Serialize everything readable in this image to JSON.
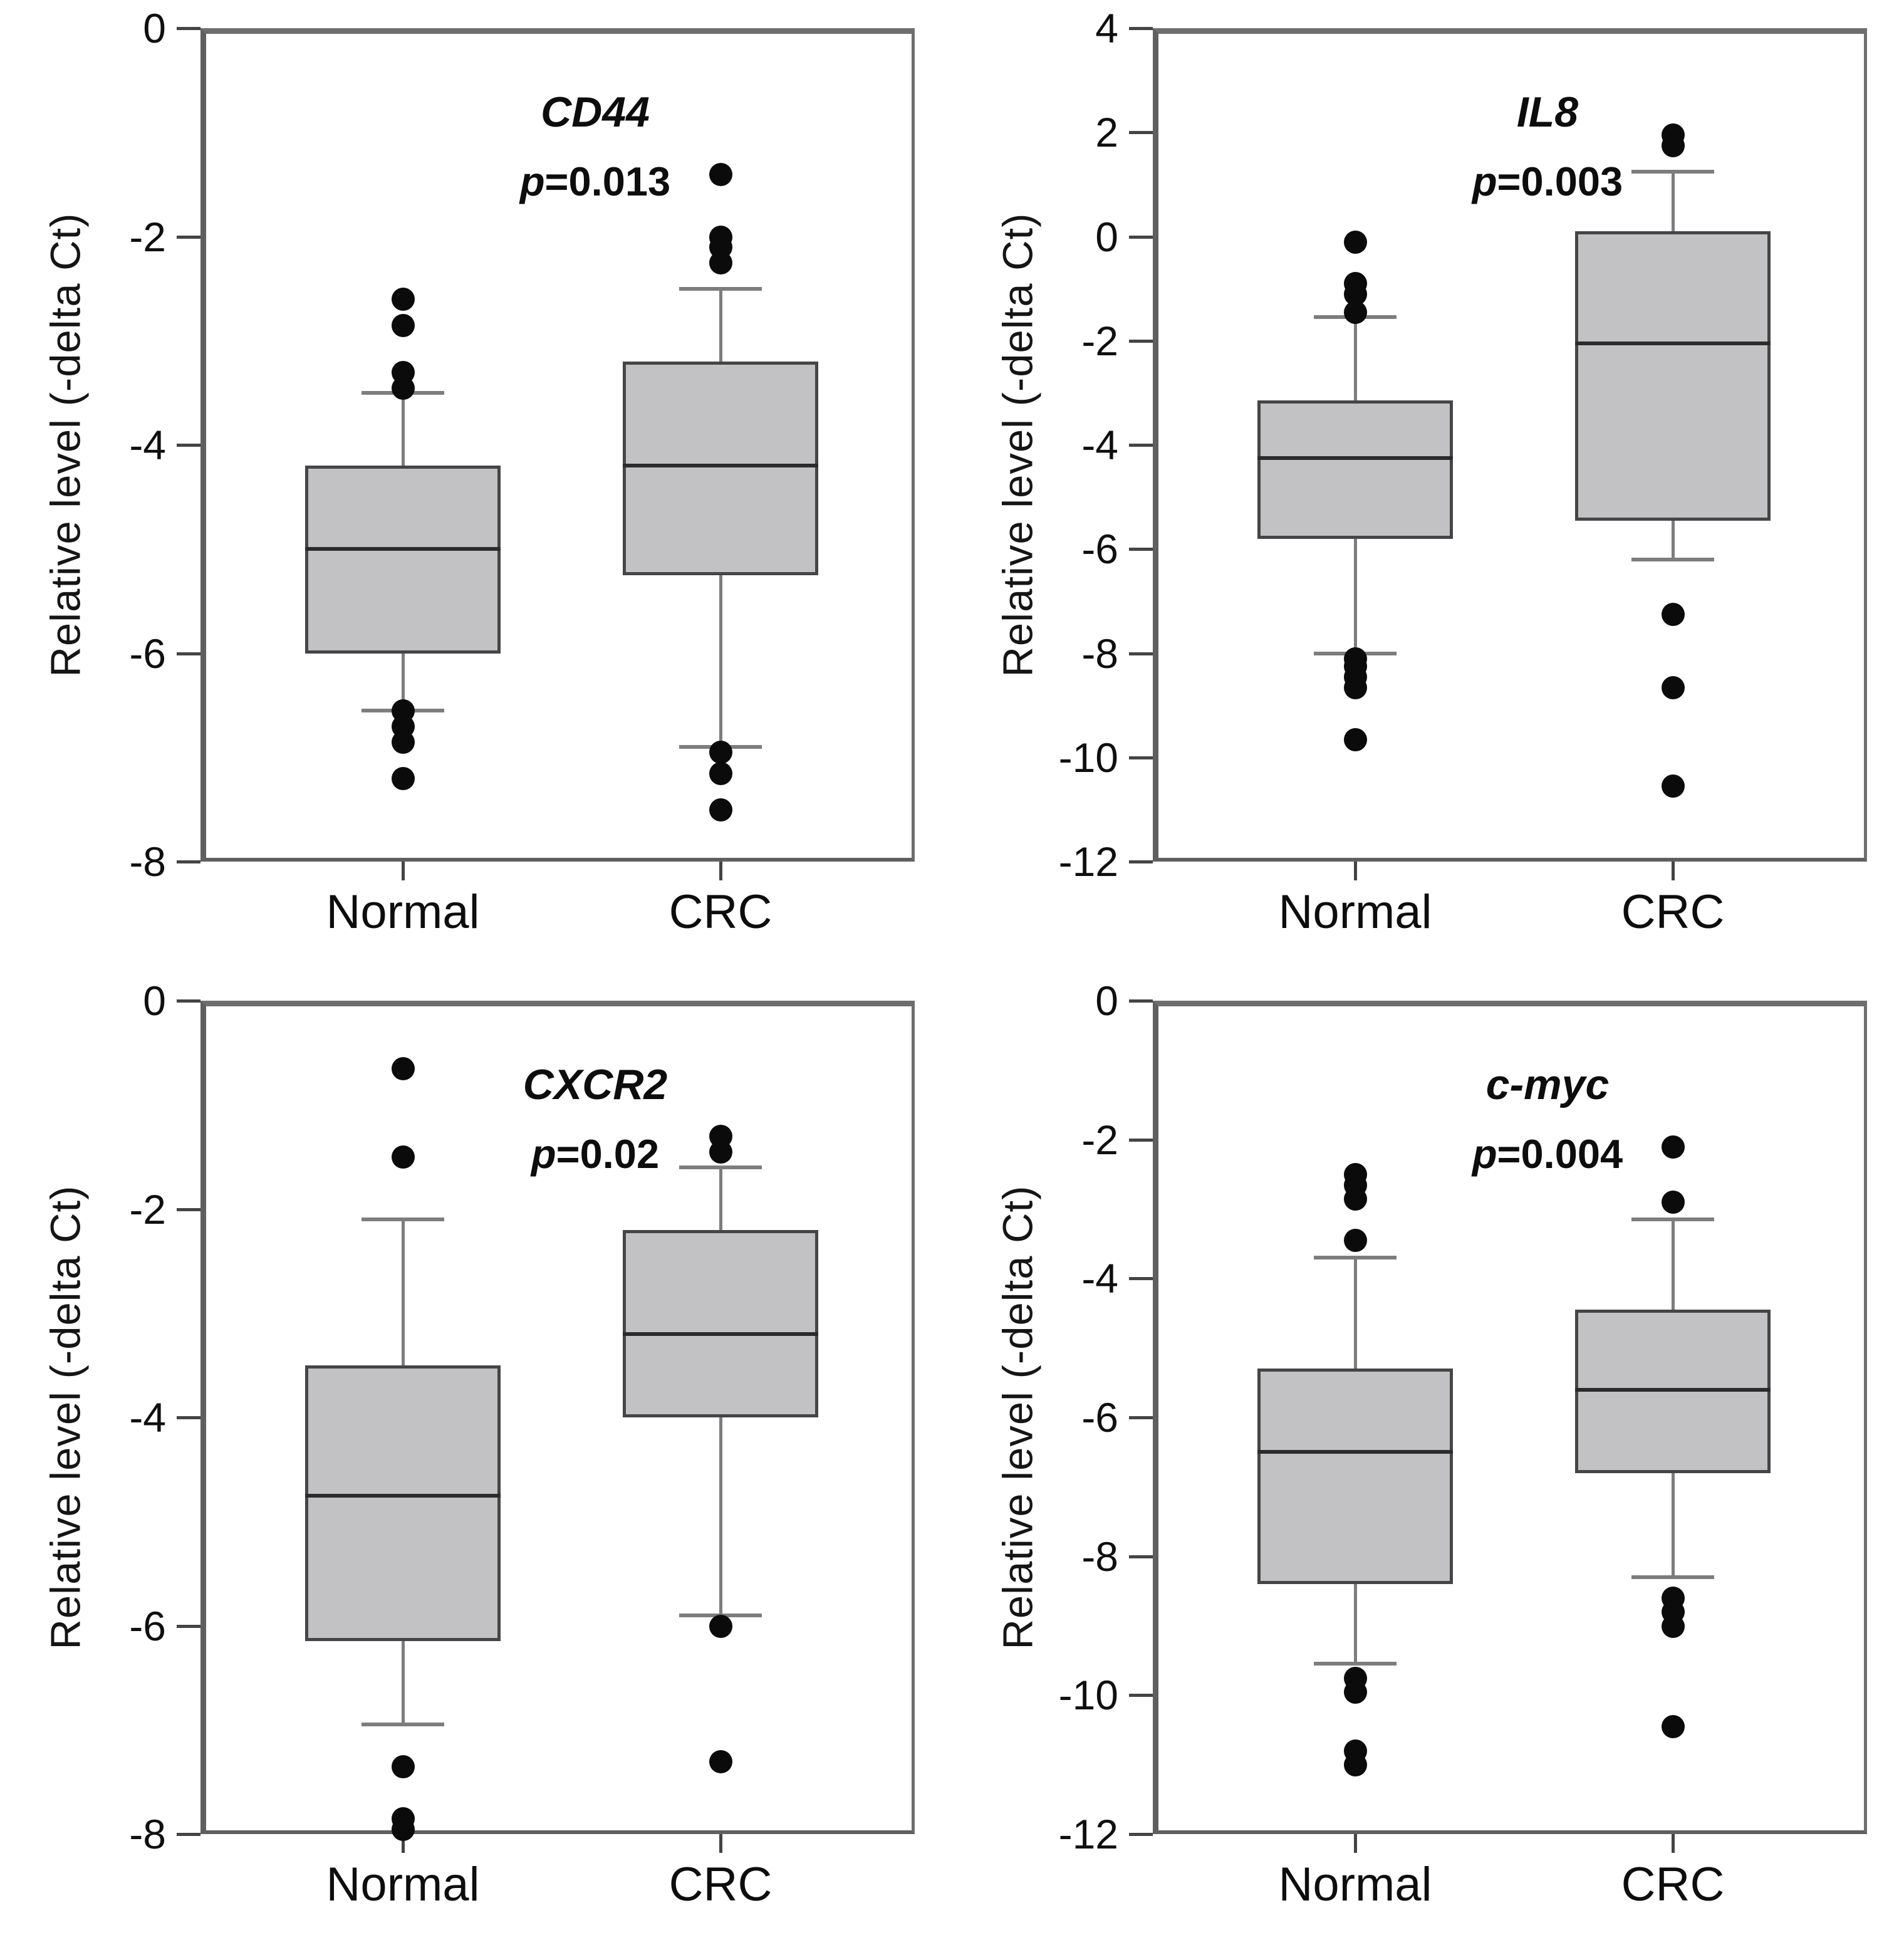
{
  "figure": {
    "background": "#ffffff",
    "box_fill": "#c2c2c4",
    "box_border": "#454545",
    "median_color": "#2b2b2b",
    "whisker_color": "#7d7d7d",
    "outlier_color": "#0b0b0b",
    "axis_color": "#5f5f5f",
    "tick_color": "#444444",
    "text_color": "#111111"
  },
  "chart_data": [
    {
      "type": "box",
      "title": "CD44",
      "p_prefix": "p",
      "p_text": "=0.013",
      "ylabel": "Relative level (-delta Ct)",
      "categories": [
        "Normal",
        "CRC"
      ],
      "ylim": [
        -8,
        0
      ],
      "yticks": [
        0,
        -2,
        -4,
        -6,
        -8
      ],
      "grid": false,
      "series": [
        {
          "name": "Normal",
          "q1": -6.0,
          "median": -5.0,
          "q3": -4.2,
          "whisker_low": -6.55,
          "whisker_high": -3.5,
          "outliers": [
            -2.6,
            -2.85,
            -3.3,
            -3.45,
            -6.55,
            -6.7,
            -6.85,
            -7.2
          ]
        },
        {
          "name": "CRC",
          "q1": -5.25,
          "median": -4.2,
          "q3": -3.2,
          "whisker_low": -6.9,
          "whisker_high": -2.5,
          "outliers": [
            -1.4,
            -2.0,
            -2.1,
            -2.25,
            -6.95,
            -7.15,
            -7.5
          ]
        }
      ]
    },
    {
      "type": "box",
      "title": "IL8",
      "p_prefix": "p",
      "p_text": "=0.003",
      "ylabel": "Relative level (-delta Ct)",
      "categories": [
        "Normal",
        "CRC"
      ],
      "ylim": [
        -12,
        4
      ],
      "yticks": [
        4,
        2,
        0,
        -2,
        -4,
        -6,
        -8,
        -10,
        -12
      ],
      "grid": false,
      "series": [
        {
          "name": "Normal",
          "q1": -5.8,
          "median": -4.25,
          "q3": -3.15,
          "whisker_low": -8.0,
          "whisker_high": -1.55,
          "outliers": [
            -0.1,
            -0.9,
            -1.1,
            -1.45,
            -8.1,
            -8.25,
            -8.45,
            -8.65,
            -9.65
          ]
        },
        {
          "name": "CRC",
          "q1": -5.45,
          "median": -2.05,
          "q3": 0.1,
          "whisker_low": -6.2,
          "whisker_high": 1.25,
          "outliers": [
            1.95,
            1.75,
            -7.25,
            -8.65,
            -10.55
          ]
        }
      ]
    },
    {
      "type": "box",
      "title": "CXCR2",
      "p_prefix": "p",
      "p_text": "=0.02",
      "ylabel": "Relative level (-delta Ct)",
      "categories": [
        "Normal",
        "CRC"
      ],
      "ylim": [
        -8,
        0
      ],
      "yticks": [
        0,
        -2,
        -4,
        -6,
        -8
      ],
      "grid": false,
      "series": [
        {
          "name": "Normal",
          "q1": -6.15,
          "median": -4.75,
          "q3": -3.5,
          "whisker_low": -6.95,
          "whisker_high": -2.1,
          "outliers": [
            -0.65,
            -1.5,
            -7.35,
            -7.85,
            -7.95
          ]
        },
        {
          "name": "CRC",
          "q1": -4.0,
          "median": -3.2,
          "q3": -2.2,
          "whisker_low": -5.9,
          "whisker_high": -1.6,
          "outliers": [
            -1.3,
            -1.45,
            -6.0,
            -7.3
          ]
        }
      ]
    },
    {
      "type": "box",
      "title": "c-myc",
      "p_prefix": "p",
      "p_text": "=0.004",
      "ylabel": "Relative level (-delta Ct)",
      "categories": [
        "Normal",
        "CRC"
      ],
      "ylim": [
        -12,
        0
      ],
      "yticks": [
        0,
        -2,
        -4,
        -6,
        -8,
        -10,
        -12
      ],
      "grid": false,
      "series": [
        {
          "name": "Normal",
          "q1": -8.4,
          "median": -6.5,
          "q3": -5.3,
          "whisker_low": -9.55,
          "whisker_high": -3.7,
          "outliers": [
            -2.5,
            -2.65,
            -2.85,
            -3.45,
            -9.75,
            -9.95,
            -10.8,
            -11.0
          ]
        },
        {
          "name": "CRC",
          "q1": -6.8,
          "median": -5.6,
          "q3": -4.45,
          "whisker_low": -8.3,
          "whisker_high": -3.15,
          "outliers": [
            -2.1,
            -2.9,
            -8.6,
            -8.8,
            -9.0,
            -10.45
          ]
        }
      ]
    }
  ]
}
